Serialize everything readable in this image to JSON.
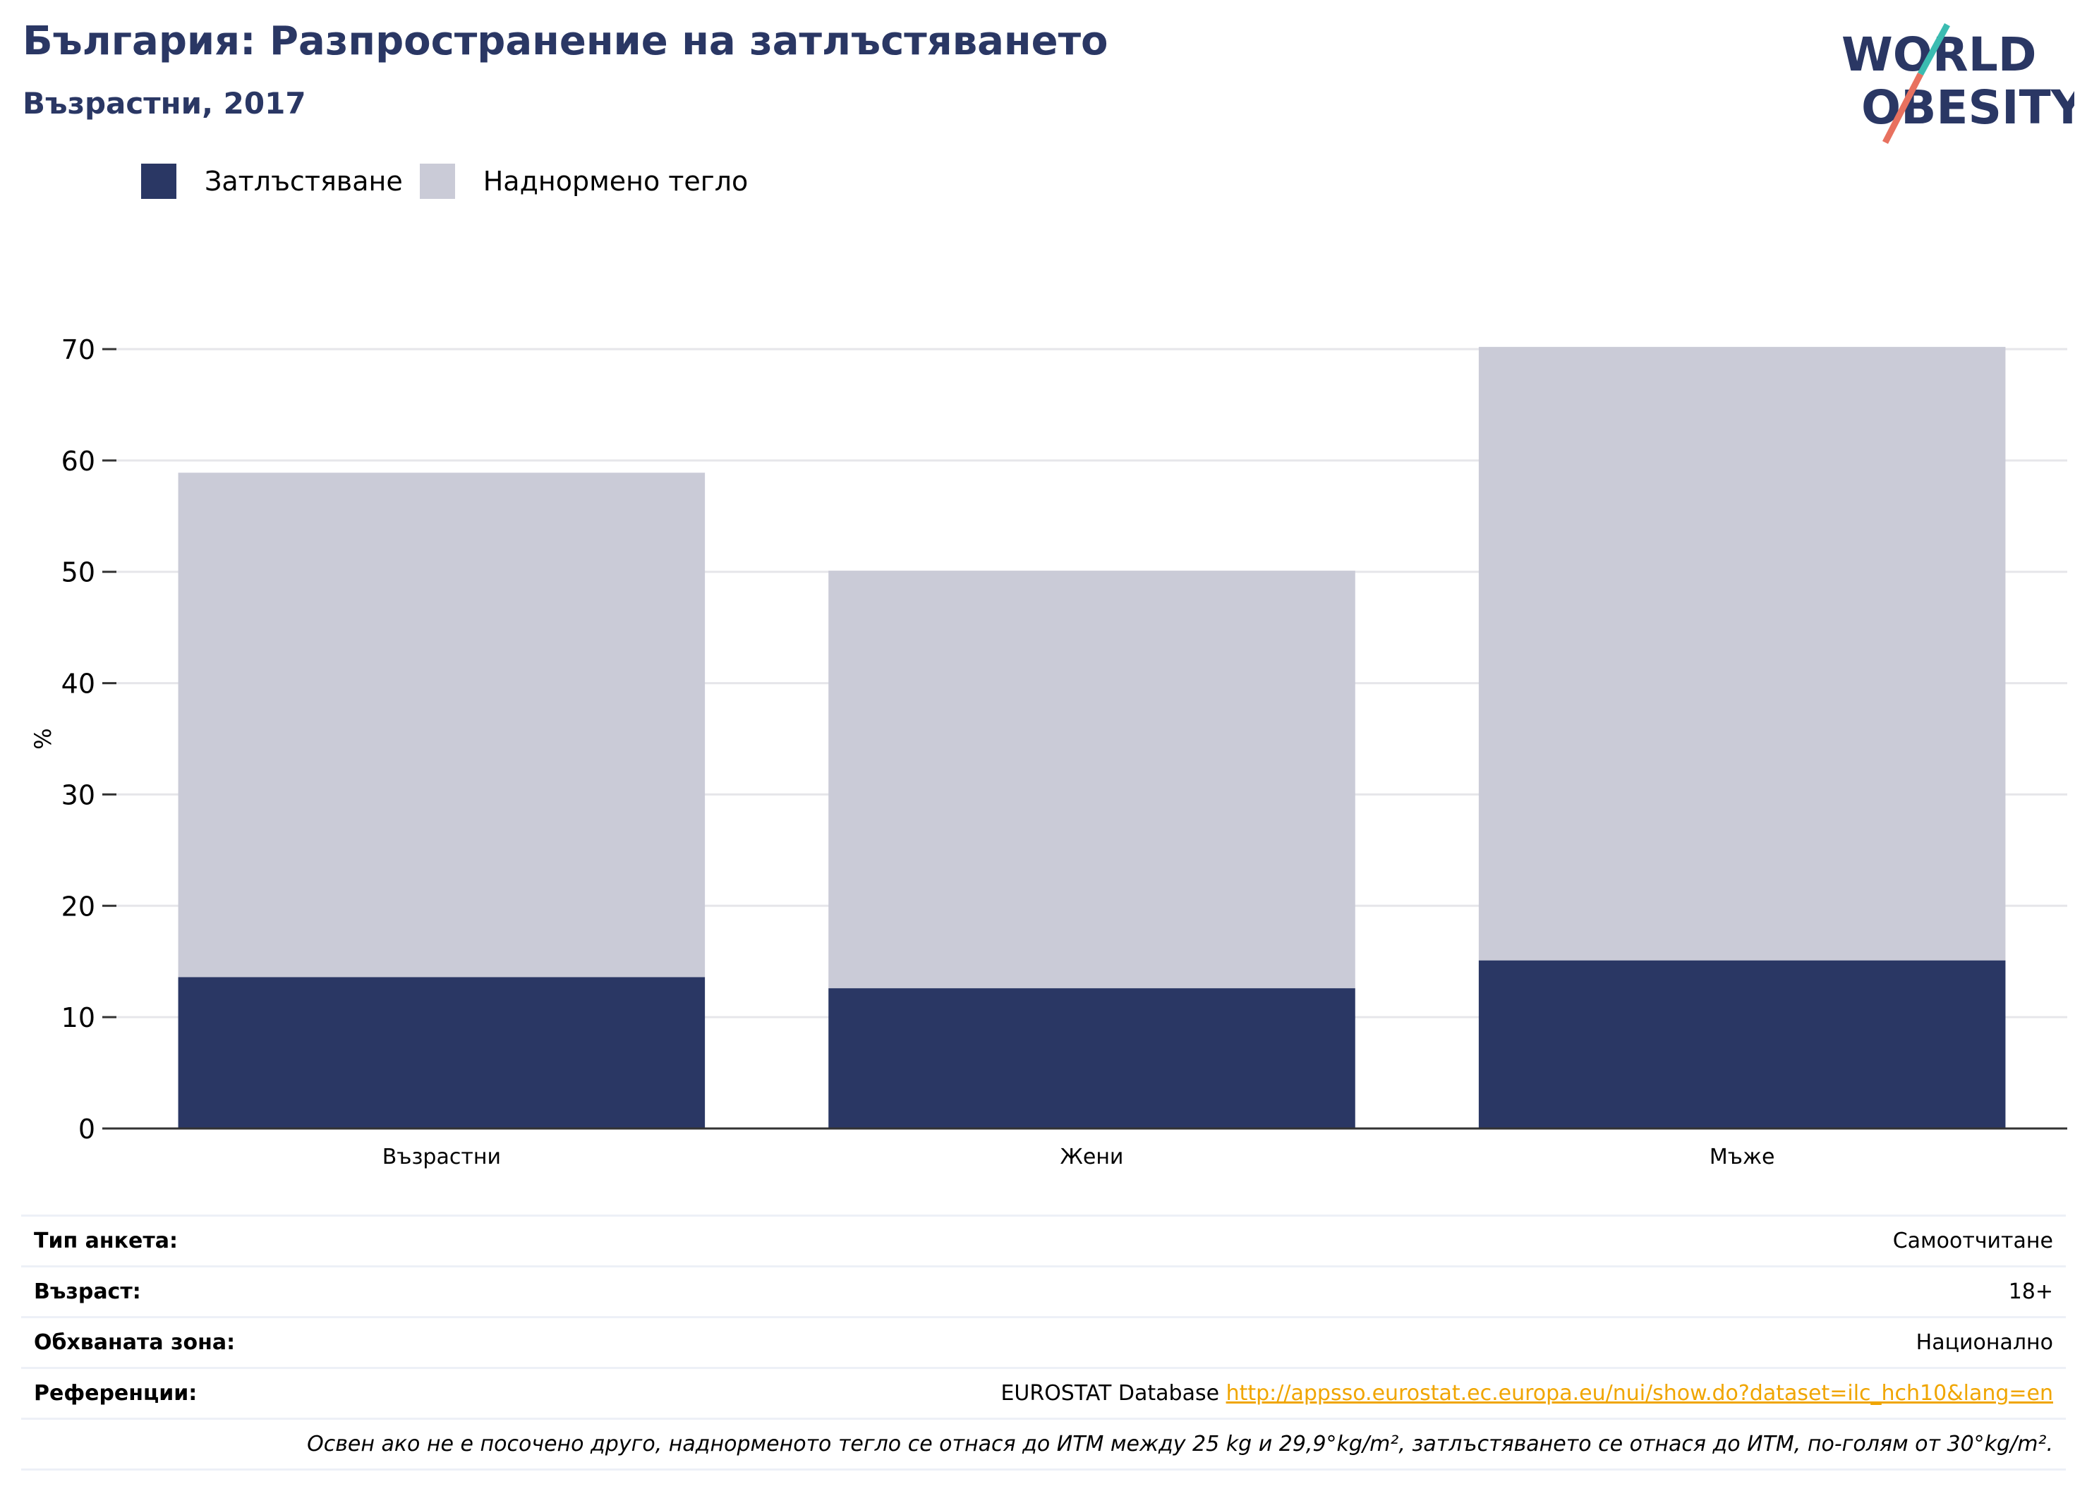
{
  "header": {
    "title": "България: Разпространение на затлъстяването",
    "subtitle": "Възрастни, 2017",
    "logo_line1": "WORLD",
    "logo_line2": "OBESITY"
  },
  "legend": [
    {
      "label": "Затлъстяване",
      "color": "#2a3764"
    },
    {
      "label": "Наднормено тегло",
      "color": "#cacbd7"
    }
  ],
  "chart_data": {
    "type": "bar",
    "stacked": true,
    "categories": [
      "Възрастни",
      "Жени",
      "Мъже"
    ],
    "series": [
      {
        "name": "Затлъстяване",
        "values": [
          13.6,
          12.6,
          15.1
        ],
        "color": "#2a3764"
      },
      {
        "name": "Наднормено тегло",
        "values": [
          45.3,
          37.5,
          55.1
        ],
        "color": "#cacbd7"
      }
    ],
    "ylabel": "%",
    "ylim": [
      0,
      70
    ],
    "yticks": [
      0,
      10,
      20,
      30,
      40,
      50,
      60,
      70
    ],
    "grid": true,
    "legend_position": "top-left"
  },
  "info": {
    "rows": [
      {
        "key": "Тип анкета:",
        "value": "Самоотчитане"
      },
      {
        "key": "Възраст:",
        "value": "18+"
      },
      {
        "key": "Обхваната зона:",
        "value": "Национално"
      }
    ],
    "references": {
      "key": "Референции:",
      "source": "EUROSTAT Database",
      "link": "http://appsso.eurostat.ec.europa.eu/nui/show.do?dataset=ilc_hch10&lang=en"
    },
    "note": "Освен ако не е посочено друго, наднорменото тегло се отнася до ИТМ между 25 kg и 29,9°kg/m², затлъстяването се отнася до ИТМ, по-голям от 30°kg/m²."
  }
}
